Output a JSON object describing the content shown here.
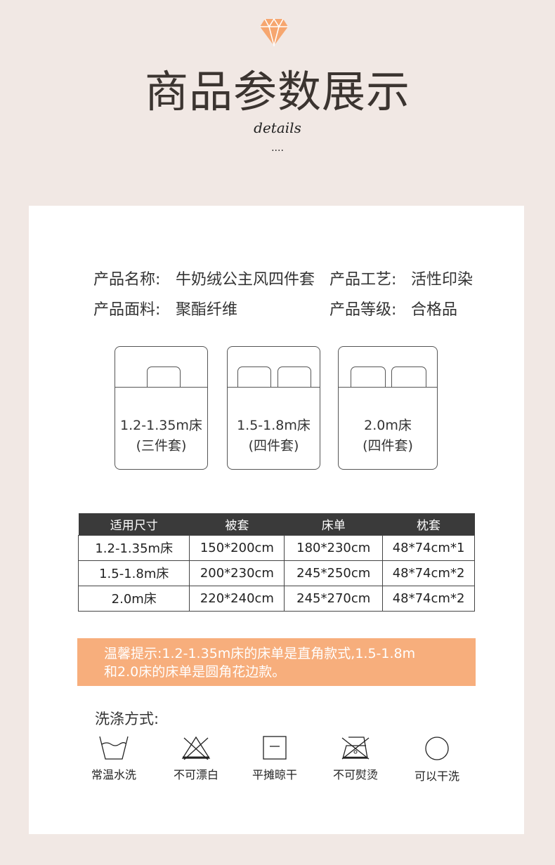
{
  "header": {
    "title": "商品参数展示",
    "subtitle": "details",
    "dots": "....",
    "accent": "#f6a66f"
  },
  "specs": [
    {
      "label": "产品名称:",
      "value": "牛奶绒公主风四件套"
    },
    {
      "label": "产品工艺:",
      "value": "活性印染"
    },
    {
      "label": "产品面料:",
      "value": "聚酯纤维"
    },
    {
      "label": "产品等级:",
      "value": "合格品"
    }
  ],
  "beds": [
    {
      "size": "1.2-1.35m床",
      "set": "(三件套)"
    },
    {
      "size": "1.5-1.8m床",
      "set": "(四件套)"
    },
    {
      "size": "2.0m床",
      "set": "(四件套)"
    }
  ],
  "table": {
    "headers": [
      "适用尺寸",
      "被套",
      "床单",
      "枕套"
    ],
    "rows": [
      [
        "1.2-1.35m床",
        "150*200cm",
        "180*230cm",
        "48*74cm*1"
      ],
      [
        "1.5-1.8m床",
        "200*230cm",
        "245*250cm",
        "48*74cm*2"
      ],
      [
        "2.0m床",
        "220*240cm",
        "245*270cm",
        "48*74cm*2"
      ]
    ]
  },
  "notice": {
    "line1": "温馨提示:1.2-1.35m床的床单是直角款式,1.5-1.8m",
    "line2": "和2.0床的床单是圆角花边款。",
    "color": "#f7ae7c"
  },
  "wash": {
    "title": "洗涤方式:",
    "items": [
      {
        "icon": "hand-wash-icon",
        "label": "常温水洗"
      },
      {
        "icon": "no-bleach-icon",
        "label": "不可漂白"
      },
      {
        "icon": "dry-flat-icon",
        "label": "平摊晾干"
      },
      {
        "icon": "no-iron-icon",
        "label": "不可熨烫"
      },
      {
        "icon": "dry-clean-icon",
        "label": "可以干洗"
      }
    ]
  }
}
